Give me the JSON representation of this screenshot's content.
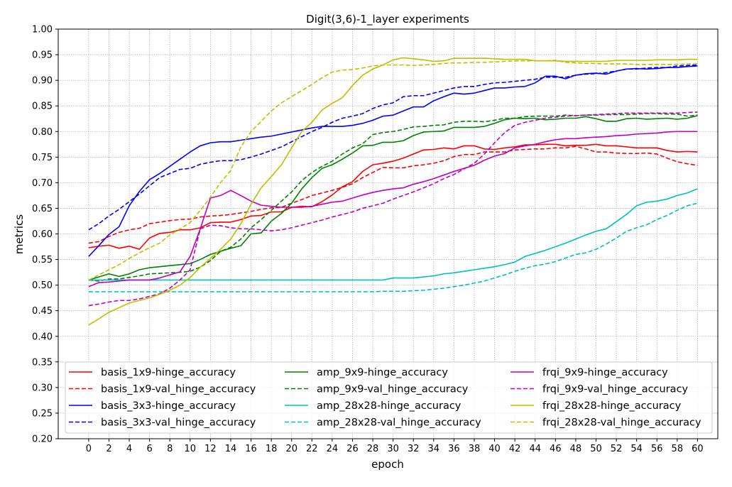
{
  "chart_data": {
    "type": "line",
    "title": "Digit(3,6)-1_layer experiments",
    "xlabel": "epoch",
    "ylabel": "metrics",
    "xlim": [
      -3,
      62
    ],
    "ylim": [
      0.2,
      1.0
    ],
    "xticks": [
      0,
      2,
      4,
      6,
      8,
      10,
      12,
      14,
      16,
      18,
      20,
      22,
      24,
      26,
      28,
      30,
      32,
      34,
      36,
      38,
      40,
      42,
      44,
      46,
      48,
      50,
      52,
      54,
      56,
      58,
      60
    ],
    "yticks": [
      0.2,
      0.25,
      0.3,
      0.35,
      0.4,
      0.45,
      0.5,
      0.55,
      0.6,
      0.65,
      0.7,
      0.75,
      0.8,
      0.85,
      0.9,
      0.95,
      1.0
    ],
    "xtick_labels": [
      "0",
      "2",
      "4",
      "6",
      "8",
      "10",
      "12",
      "14",
      "16",
      "18",
      "20",
      "22",
      "24",
      "26",
      "28",
      "30",
      "32",
      "34",
      "36",
      "38",
      "40",
      "42",
      "44",
      "46",
      "48",
      "50",
      "52",
      "54",
      "56",
      "58",
      "60"
    ],
    "ytick_labels": [
      "0.20",
      "0.25",
      "0.30",
      "0.35",
      "0.40",
      "0.45",
      "0.50",
      "0.55",
      "0.60",
      "0.65",
      "0.70",
      "0.75",
      "0.80",
      "0.85",
      "0.90",
      "0.95",
      "1.00"
    ],
    "grid": true,
    "legend_position": "lower-center",
    "legend_columns": 3,
    "series": [
      {
        "name": "basis_1x9-hinge_accuracy",
        "color": "#ff0000",
        "dashed": false,
        "values": [
          0.573,
          0.576,
          0.578,
          0.572,
          0.576,
          0.57,
          0.592,
          0.601,
          0.603,
          0.608,
          0.608,
          0.612,
          0.622,
          0.623,
          0.623,
          0.628,
          0.635,
          0.636,
          0.643,
          0.643,
          0.652,
          0.654,
          0.653,
          0.663,
          0.676,
          0.692,
          0.702,
          0.722,
          0.735,
          0.738,
          0.742,
          0.748,
          0.756,
          0.764,
          0.765,
          0.768,
          0.766,
          0.772,
          0.772,
          0.766,
          0.765,
          0.768,
          0.77,
          0.774,
          0.774,
          0.775,
          0.775,
          0.772,
          0.773,
          0.773,
          0.775,
          0.772,
          0.772,
          0.77,
          0.768,
          0.768,
          0.768,
          0.763,
          0.76,
          0.761,
          0.76
        ]
      },
      {
        "name": "basis_1x9-val_hinge_accuracy",
        "color": "#ff0000",
        "dashed": true,
        "values": [
          0.582,
          0.585,
          0.595,
          0.603,
          0.608,
          0.611,
          0.62,
          0.623,
          0.626,
          0.628,
          0.629,
          0.633,
          0.635,
          0.636,
          0.638,
          0.641,
          0.644,
          0.648,
          0.651,
          0.652,
          0.66,
          0.667,
          0.675,
          0.68,
          0.685,
          0.691,
          0.698,
          0.71,
          0.72,
          0.73,
          0.729,
          0.729,
          0.733,
          0.735,
          0.738,
          0.743,
          0.751,
          0.755,
          0.755,
          0.76,
          0.76,
          0.76,
          0.764,
          0.765,
          0.766,
          0.766,
          0.768,
          0.768,
          0.771,
          0.766,
          0.76,
          0.76,
          0.758,
          0.757,
          0.757,
          0.758,
          0.756,
          0.748,
          0.741,
          0.737,
          0.734
        ]
      },
      {
        "name": "basis_3x3-hinge_accuracy",
        "color": "#0000ff",
        "dashed": false,
        "values": [
          0.556,
          0.577,
          0.599,
          0.614,
          0.655,
          0.683,
          0.706,
          0.718,
          0.732,
          0.746,
          0.76,
          0.772,
          0.778,
          0.78,
          0.78,
          0.783,
          0.786,
          0.789,
          0.791,
          0.795,
          0.799,
          0.803,
          0.807,
          0.81,
          0.81,
          0.81,
          0.812,
          0.816,
          0.822,
          0.83,
          0.832,
          0.84,
          0.848,
          0.848,
          0.86,
          0.868,
          0.875,
          0.873,
          0.875,
          0.88,
          0.885,
          0.885,
          0.887,
          0.888,
          0.895,
          0.908,
          0.908,
          0.903,
          0.91,
          0.913,
          0.914,
          0.912,
          0.918,
          0.922,
          0.923,
          0.922,
          0.923,
          0.925,
          0.925,
          0.927,
          0.928
        ]
      },
      {
        "name": "basis_3x3-val_hinge_accuracy",
        "color": "#0000ff",
        "dashed": true,
        "values": [
          0.608,
          0.62,
          0.635,
          0.648,
          0.663,
          0.678,
          0.694,
          0.71,
          0.718,
          0.726,
          0.728,
          0.736,
          0.74,
          0.743,
          0.743,
          0.745,
          0.75,
          0.756,
          0.763,
          0.77,
          0.78,
          0.79,
          0.8,
          0.808,
          0.818,
          0.826,
          0.83,
          0.835,
          0.845,
          0.852,
          0.856,
          0.868,
          0.87,
          0.87,
          0.875,
          0.88,
          0.885,
          0.888,
          0.888,
          0.892,
          0.895,
          0.896,
          0.898,
          0.9,
          0.902,
          0.906,
          0.906,
          0.906,
          0.91,
          0.912,
          0.913,
          0.915,
          0.918,
          0.922,
          0.922,
          0.924,
          0.925,
          0.925,
          0.928,
          0.929,
          0.93
        ]
      },
      {
        "name": "amp_9x9-hinge_accuracy",
        "color": "#008000",
        "dashed": false,
        "values": [
          0.51,
          0.516,
          0.522,
          0.517,
          0.522,
          0.53,
          0.534,
          0.536,
          0.538,
          0.54,
          0.542,
          0.55,
          0.56,
          0.566,
          0.572,
          0.577,
          0.6,
          0.602,
          0.625,
          0.64,
          0.66,
          0.688,
          0.71,
          0.728,
          0.735,
          0.746,
          0.758,
          0.772,
          0.773,
          0.779,
          0.779,
          0.782,
          0.792,
          0.799,
          0.8,
          0.801,
          0.808,
          0.808,
          0.808,
          0.81,
          0.816,
          0.823,
          0.826,
          0.825,
          0.826,
          0.823,
          0.824,
          0.826,
          0.826,
          0.829,
          0.825,
          0.82,
          0.82,
          0.825,
          0.826,
          0.824,
          0.825,
          0.826,
          0.824,
          0.826,
          0.831
        ]
      },
      {
        "name": "amp_9x9-val_hinge_accuracy",
        "color": "#008000",
        "dashed": true,
        "values": [
          0.51,
          0.508,
          0.512,
          0.512,
          0.515,
          0.518,
          0.522,
          0.523,
          0.524,
          0.525,
          0.527,
          0.535,
          0.548,
          0.566,
          0.574,
          0.59,
          0.612,
          0.628,
          0.646,
          0.664,
          0.682,
          0.704,
          0.72,
          0.732,
          0.742,
          0.756,
          0.768,
          0.776,
          0.794,
          0.798,
          0.8,
          0.804,
          0.809,
          0.81,
          0.812,
          0.813,
          0.818,
          0.82,
          0.82,
          0.819,
          0.822,
          0.826,
          0.826,
          0.829,
          0.83,
          0.83,
          0.83,
          0.832,
          0.831,
          0.832,
          0.832,
          0.833,
          0.833,
          0.833,
          0.834,
          0.835,
          0.835,
          0.834,
          0.834,
          0.83,
          0.832
        ]
      },
      {
        "name": "amp_28x28-hinge_accuracy",
        "color": "#00bfbf",
        "dashed": false,
        "values": [
          0.51,
          0.51,
          0.51,
          0.51,
          0.51,
          0.51,
          0.51,
          0.51,
          0.51,
          0.51,
          0.51,
          0.51,
          0.51,
          0.51,
          0.51,
          0.51,
          0.51,
          0.51,
          0.51,
          0.51,
          0.51,
          0.51,
          0.51,
          0.51,
          0.51,
          0.51,
          0.51,
          0.51,
          0.51,
          0.51,
          0.514,
          0.514,
          0.514,
          0.516,
          0.518,
          0.522,
          0.524,
          0.527,
          0.53,
          0.533,
          0.536,
          0.54,
          0.545,
          0.556,
          0.562,
          0.568,
          0.575,
          0.582,
          0.59,
          0.598,
          0.605,
          0.61,
          0.624,
          0.638,
          0.655,
          0.662,
          0.664,
          0.668,
          0.675,
          0.68,
          0.688
        ]
      },
      {
        "name": "amp_28x28-val_hinge_accuracy",
        "color": "#00bfbf",
        "dashed": true,
        "values": [
          0.487,
          0.487,
          0.487,
          0.487,
          0.487,
          0.487,
          0.487,
          0.487,
          0.487,
          0.487,
          0.487,
          0.487,
          0.487,
          0.487,
          0.487,
          0.487,
          0.487,
          0.487,
          0.487,
          0.487,
          0.487,
          0.487,
          0.487,
          0.487,
          0.487,
          0.487,
          0.487,
          0.487,
          0.487,
          0.488,
          0.488,
          0.488,
          0.489,
          0.49,
          0.492,
          0.494,
          0.497,
          0.5,
          0.504,
          0.508,
          0.514,
          0.52,
          0.527,
          0.533,
          0.538,
          0.541,
          0.546,
          0.553,
          0.56,
          0.563,
          0.57,
          0.58,
          0.592,
          0.605,
          0.612,
          0.618,
          0.628,
          0.636,
          0.646,
          0.655,
          0.66
        ]
      },
      {
        "name": "frqi_9x9-hinge_accuracy",
        "color": "#bf00bf",
        "dashed": false,
        "values": [
          0.497,
          0.505,
          0.506,
          0.508,
          0.51,
          0.51,
          0.51,
          0.514,
          0.52,
          0.526,
          0.556,
          0.61,
          0.67,
          0.675,
          0.685,
          0.675,
          0.664,
          0.656,
          0.654,
          0.652,
          0.652,
          0.652,
          0.654,
          0.658,
          0.662,
          0.664,
          0.67,
          0.676,
          0.681,
          0.685,
          0.688,
          0.69,
          0.697,
          0.702,
          0.708,
          0.715,
          0.722,
          0.728,
          0.734,
          0.744,
          0.752,
          0.757,
          0.768,
          0.772,
          0.775,
          0.78,
          0.784,
          0.786,
          0.786,
          0.788,
          0.789,
          0.79,
          0.792,
          0.793,
          0.795,
          0.796,
          0.797,
          0.799,
          0.8,
          0.8,
          0.8
        ]
      },
      {
        "name": "frqi_9x9-val_hinge_accuracy",
        "color": "#bf00bf",
        "dashed": true,
        "values": [
          0.46,
          0.463,
          0.467,
          0.47,
          0.47,
          0.473,
          0.478,
          0.483,
          0.494,
          0.51,
          0.53,
          0.61,
          0.617,
          0.616,
          0.612,
          0.61,
          0.61,
          0.608,
          0.606,
          0.608,
          0.612,
          0.617,
          0.622,
          0.627,
          0.633,
          0.638,
          0.643,
          0.65,
          0.655,
          0.66,
          0.668,
          0.675,
          0.682,
          0.69,
          0.698,
          0.708,
          0.716,
          0.727,
          0.738,
          0.756,
          0.778,
          0.798,
          0.812,
          0.818,
          0.822,
          0.826,
          0.828,
          0.83,
          0.831,
          0.832,
          0.833,
          0.834,
          0.835,
          0.836,
          0.836,
          0.836,
          0.836,
          0.836,
          0.836,
          0.837,
          0.838
        ]
      },
      {
        "name": "frqi_28x28-hinge_accuracy",
        "color": "#bfbf00",
        "dashed": false,
        "values": [
          0.422,
          0.434,
          0.447,
          0.456,
          0.465,
          0.47,
          0.475,
          0.482,
          0.49,
          0.5,
          0.515,
          0.535,
          0.552,
          0.57,
          0.59,
          0.62,
          0.658,
          0.69,
          0.712,
          0.735,
          0.768,
          0.8,
          0.818,
          0.842,
          0.855,
          0.866,
          0.89,
          0.91,
          0.922,
          0.93,
          0.94,
          0.944,
          0.942,
          0.94,
          0.937,
          0.938,
          0.943,
          0.943,
          0.943,
          0.943,
          0.942,
          0.941,
          0.941,
          0.941,
          0.938,
          0.938,
          0.938,
          0.937,
          0.937,
          0.937,
          0.937,
          0.937,
          0.939,
          0.939,
          0.939,
          0.939,
          0.94,
          0.94,
          0.94,
          0.941,
          0.941
        ]
      },
      {
        "name": "frqi_28x28-val_hinge_accuracy",
        "color": "#bfbf00",
        "dashed": true,
        "values": [
          0.51,
          0.52,
          0.53,
          0.54,
          0.552,
          0.563,
          0.573,
          0.582,
          0.598,
          0.61,
          0.622,
          0.646,
          0.672,
          0.7,
          0.724,
          0.77,
          0.8,
          0.82,
          0.84,
          0.856,
          0.868,
          0.88,
          0.892,
          0.905,
          0.916,
          0.92,
          0.921,
          0.924,
          0.928,
          0.93,
          0.93,
          0.93,
          0.929,
          0.93,
          0.931,
          0.933,
          0.934,
          0.934,
          0.935,
          0.935,
          0.936,
          0.937,
          0.938,
          0.938,
          0.938,
          0.938,
          0.939,
          0.935,
          0.934,
          0.933,
          0.933,
          0.932,
          0.932,
          0.932,
          0.931,
          0.931,
          0.931,
          0.931,
          0.931,
          0.932,
          0.932
        ]
      }
    ]
  }
}
